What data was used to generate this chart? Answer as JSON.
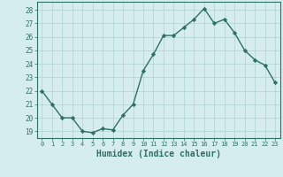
{
  "x": [
    0,
    1,
    2,
    3,
    4,
    5,
    6,
    7,
    8,
    9,
    10,
    11,
    12,
    13,
    14,
    15,
    16,
    17,
    18,
    19,
    20,
    21,
    22,
    23
  ],
  "y": [
    22,
    21,
    20,
    20,
    19,
    18.9,
    19.2,
    19.1,
    20.2,
    21,
    23.5,
    24.7,
    26.1,
    26.1,
    26.7,
    27.3,
    28.1,
    27,
    27.3,
    26.3,
    25,
    24.3,
    23.9,
    22.6
  ],
  "line_color": "#2d7066",
  "marker": "D",
  "marker_size": 2.2,
  "line_width": 1.0,
  "xlabel": "Humidex (Indice chaleur)",
  "xlabel_fontsize": 7,
  "ylabel_ticks": [
    19,
    20,
    21,
    22,
    23,
    24,
    25,
    26,
    27,
    28
  ],
  "xlim": [
    -0.5,
    23.5
  ],
  "ylim": [
    18.5,
    28.6
  ],
  "bg_color": "#d5eeed",
  "grid_color": "#b0d0ce",
  "tick_color": "#2d7066",
  "axis_color": "#2d7066"
}
